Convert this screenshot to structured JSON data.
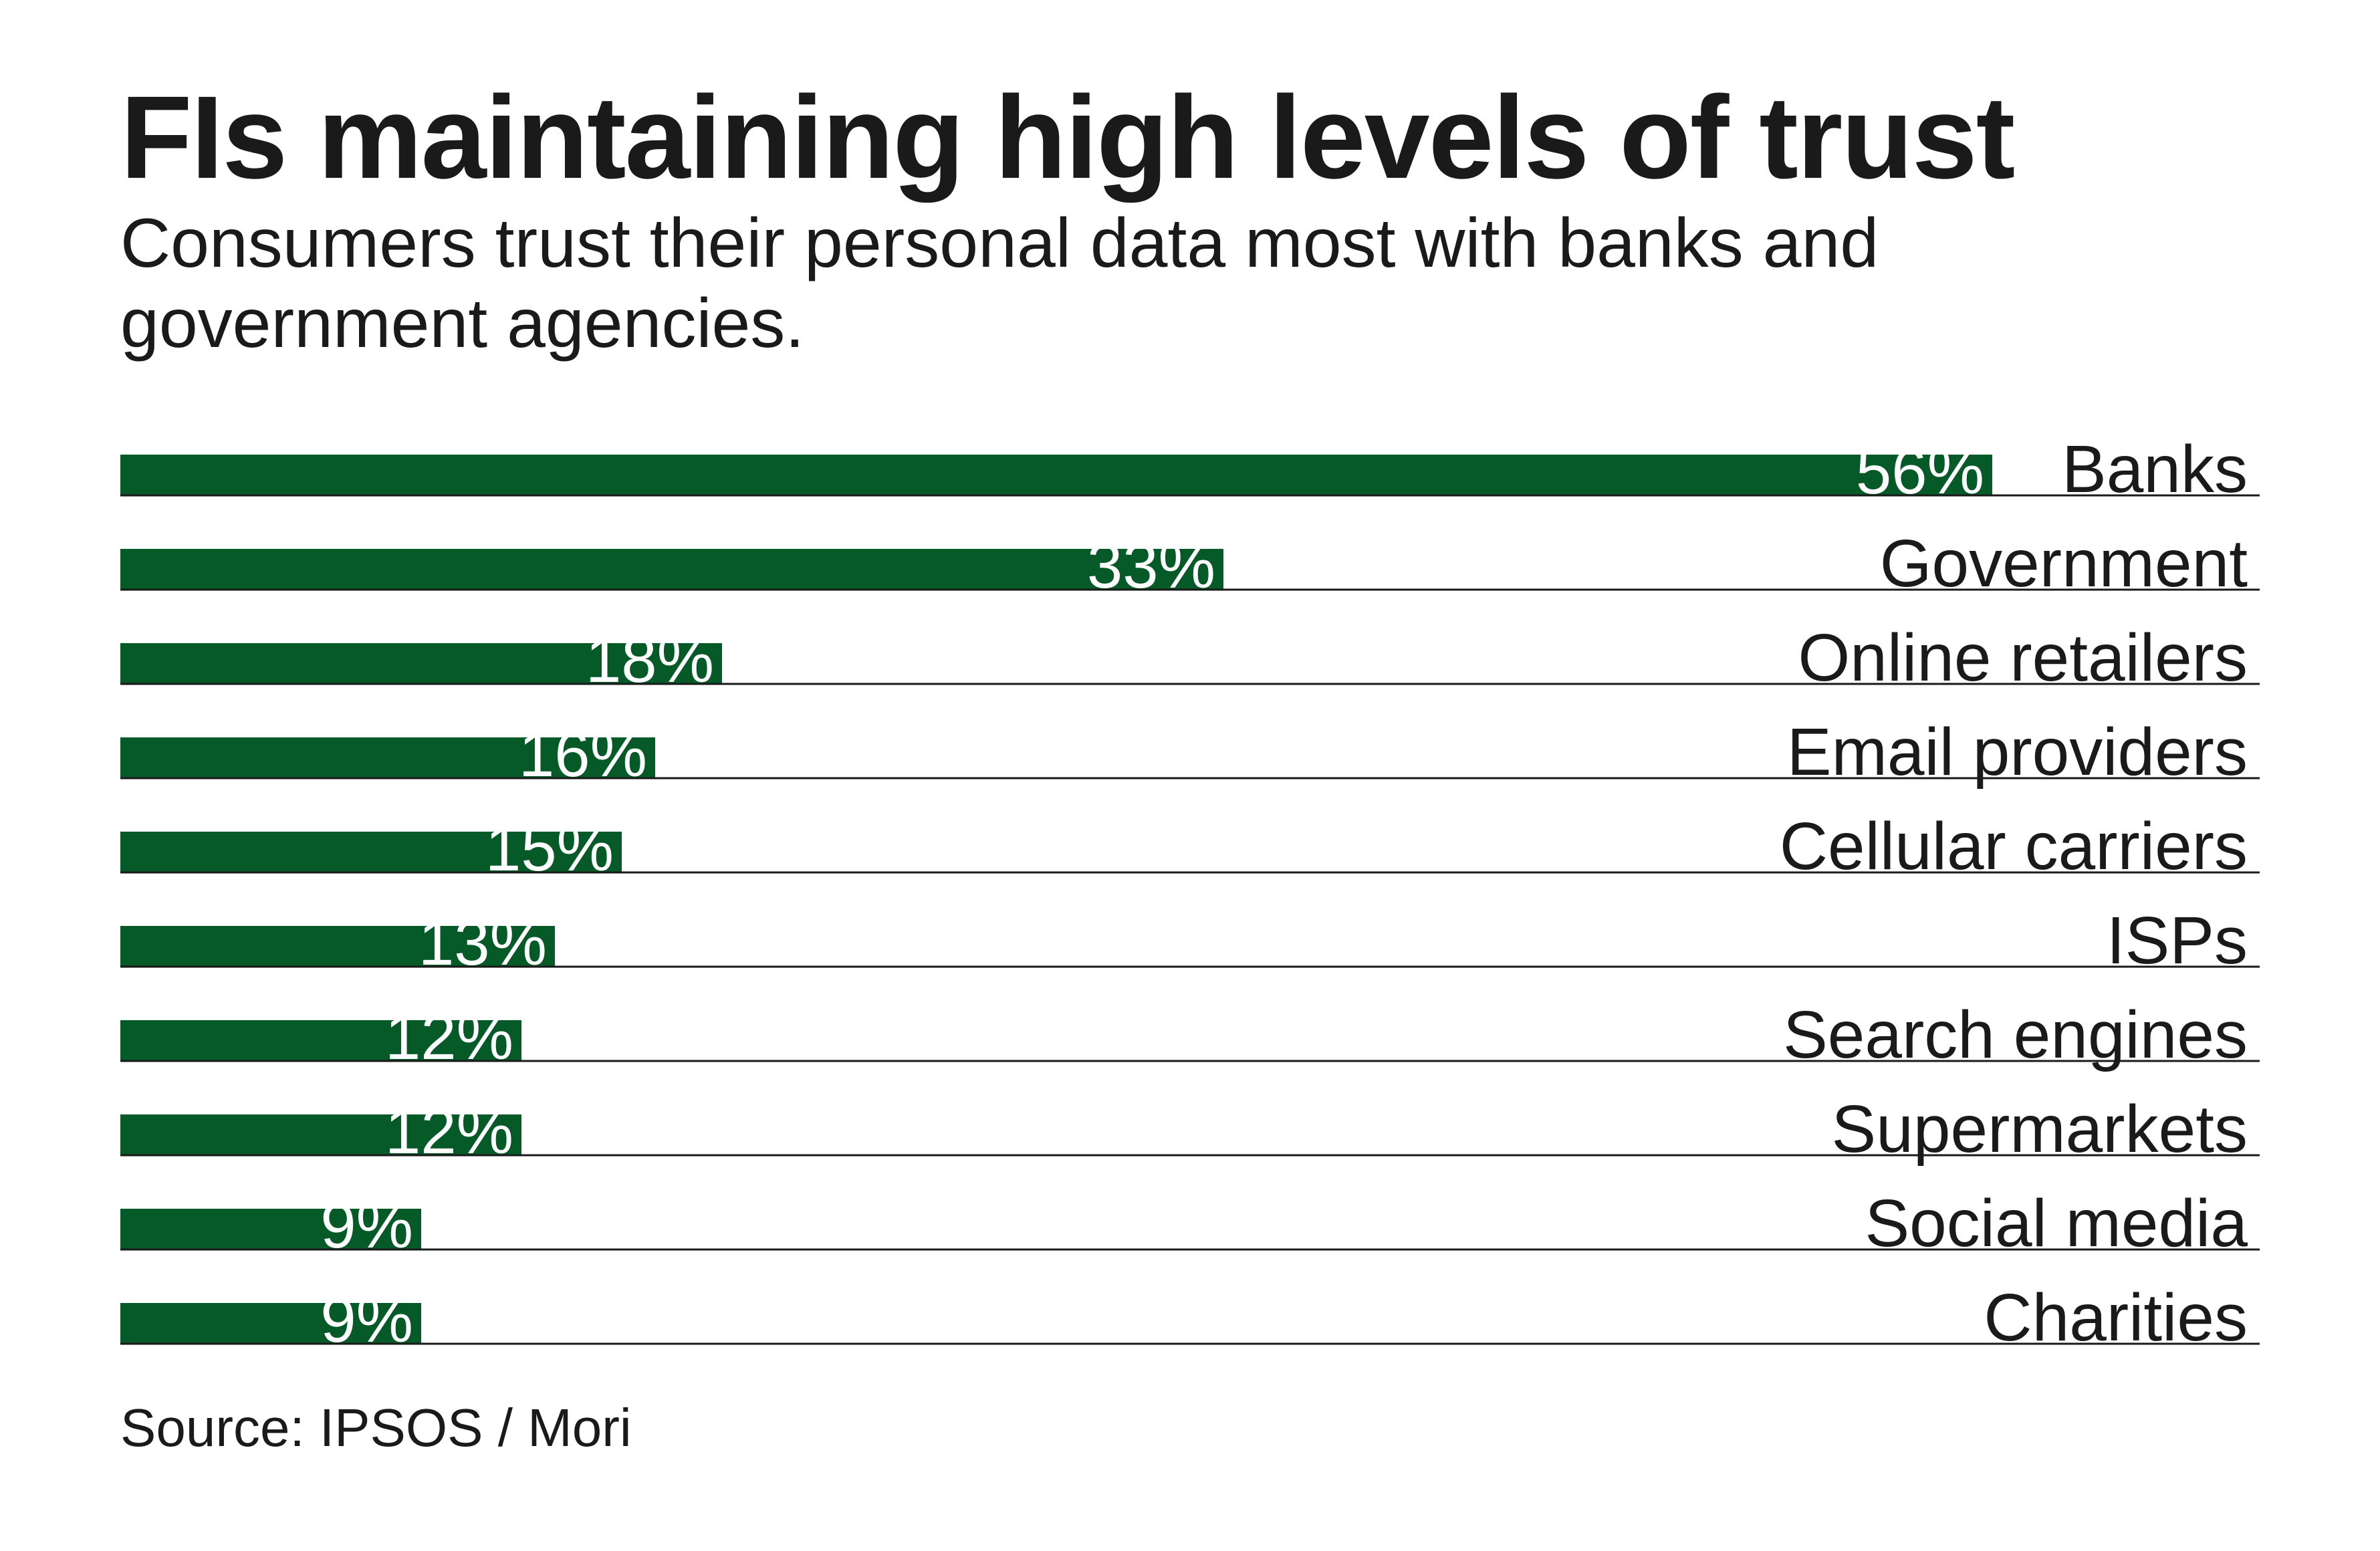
{
  "chart_data": {
    "type": "bar",
    "orientation": "horizontal",
    "title": "FIs maintaining high levels of trust",
    "subtitle": "Consumers trust their personal data most with banks and government agencies.",
    "categories": [
      "Banks",
      "Government",
      "Online retailers",
      "Email providers",
      "Cellular carriers",
      "ISPs",
      "Search engines",
      "Supermarkets",
      "Social media",
      "Charities"
    ],
    "values": [
      56,
      33,
      18,
      16,
      15,
      13,
      12,
      12,
      9,
      9
    ],
    "value_labels": [
      "56%",
      "33%",
      "18%",
      "16%",
      "15%",
      "13%",
      "12%",
      "12%",
      "9%",
      "9%"
    ],
    "unit": "%",
    "xlim": [
      0,
      64
    ],
    "xlabel": "",
    "ylabel": "",
    "grid": false,
    "legend": "none",
    "source": "Source: IPSOS / Mori",
    "colors": {
      "bar": "#055a28",
      "bar_label": "#ffffff",
      "text": "#1a1a1a"
    }
  }
}
